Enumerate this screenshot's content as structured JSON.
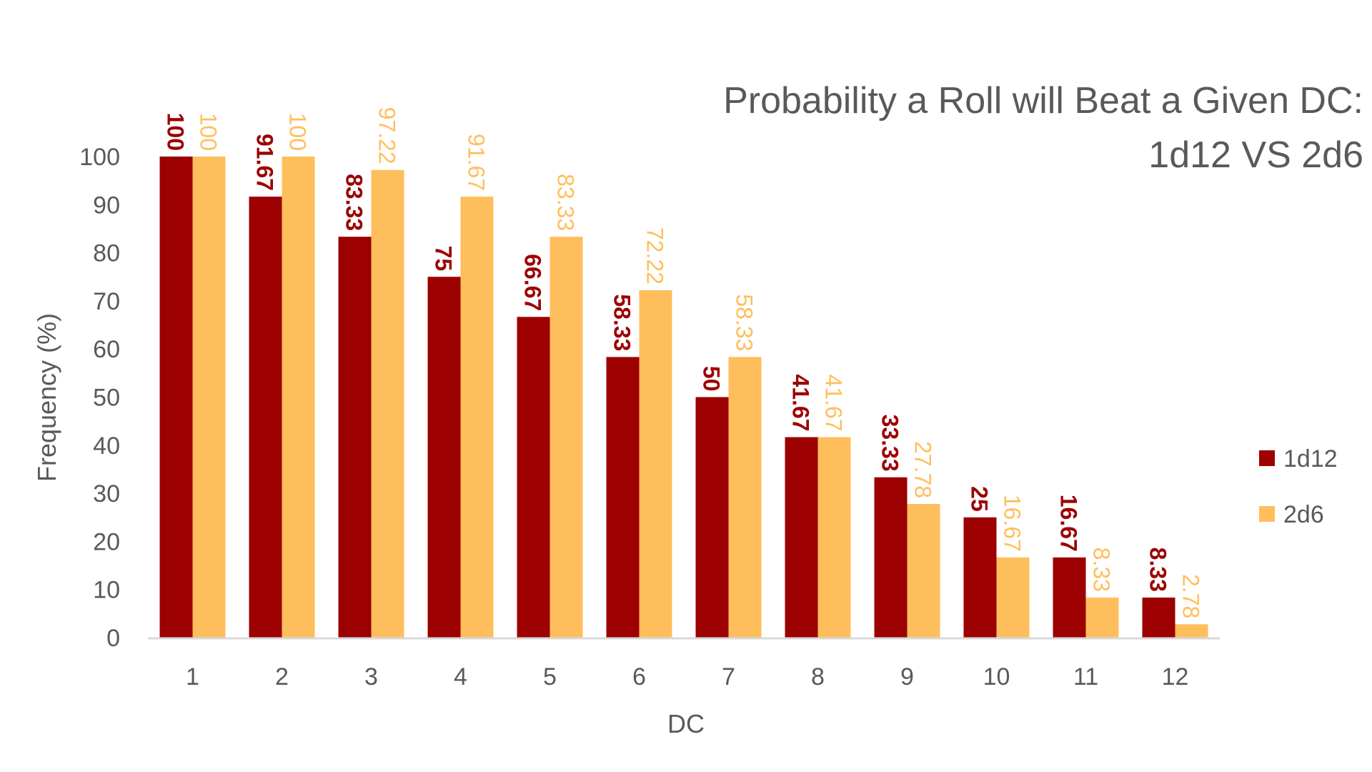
{
  "chart_data": {
    "type": "bar",
    "title": [
      "Probability a Roll will Beat a Given DC:",
      "1d12 VS 2d6"
    ],
    "xlabel": "DC",
    "ylabel": "Frequency (%)",
    "ylim": [
      0,
      100
    ],
    "yticks": [
      0,
      10,
      20,
      30,
      40,
      50,
      60,
      70,
      80,
      90,
      100
    ],
    "categories": [
      "1",
      "2",
      "3",
      "4",
      "5",
      "6",
      "7",
      "8",
      "9",
      "10",
      "11",
      "12"
    ],
    "series": [
      {
        "name": "1d12",
        "color": "#9C0000",
        "values": [
          100,
          91.67,
          83.33,
          75,
          66.67,
          58.33,
          50,
          41.67,
          33.33,
          25,
          16.67,
          8.33
        ]
      },
      {
        "name": "2d6",
        "color": "#FFBE5C",
        "values": [
          100,
          100,
          97.22,
          91.67,
          83.33,
          72.22,
          58.33,
          41.67,
          27.78,
          16.67,
          8.33,
          2.78
        ]
      }
    ],
    "data_labels": true,
    "grid": false,
    "legend_position": "right"
  }
}
